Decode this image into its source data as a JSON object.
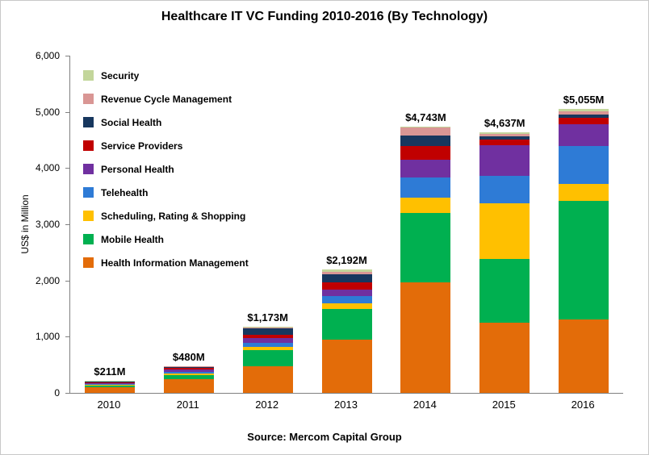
{
  "title": "Healthcare IT VC Funding 2010-2016 (By Technology)",
  "y_axis_label": "US$ in Million",
  "source": "Source: Mercom Capital Group",
  "chart_data": {
    "type": "bar",
    "stacked": true,
    "title": "Healthcare IT VC Funding 2010-2016 (By Technology)",
    "xlabel": "",
    "ylabel": "US$ in Million",
    "ylim": [
      0,
      6000
    ],
    "ytick_interval": 1000,
    "yticks": [
      "0",
      "1,000",
      "2,000",
      "3,000",
      "4,000",
      "5,000",
      "6,000"
    ],
    "grid": false,
    "legend_position": "top-left-inside",
    "categories": [
      "2010",
      "2011",
      "2012",
      "2013",
      "2014",
      "2015",
      "2016"
    ],
    "totals_labels": [
      "$211M",
      "$480M",
      "$1,173M",
      "$2,192M",
      "$4,743M",
      "$4,637M",
      "$5,055M"
    ],
    "totals_values": [
      211,
      480,
      1173,
      2192,
      4743,
      4637,
      5055
    ],
    "series": [
      {
        "name": "Health Information Management",
        "color": "#E36C09",
        "values": [
          100,
          250,
          480,
          950,
          1970,
          1250,
          1300
        ]
      },
      {
        "name": "Mobile Health",
        "color": "#00B050",
        "values": [
          30,
          60,
          280,
          550,
          1230,
          1130,
          2120
        ]
      },
      {
        "name": "Scheduling, Rating & Shopping",
        "color": "#FFC000",
        "values": [
          20,
          40,
          60,
          100,
          280,
          1000,
          300
        ]
      },
      {
        "name": "Telehealth",
        "color": "#2E7BD6",
        "values": [
          15,
          30,
          70,
          120,
          350,
          480,
          680
        ]
      },
      {
        "name": "Personal Health",
        "color": "#7030A0",
        "values": [
          15,
          40,
          90,
          120,
          320,
          550,
          380
        ]
      },
      {
        "name": "Service Providers",
        "color": "#C00000",
        "values": [
          10,
          20,
          50,
          120,
          250,
          100,
          120
        ]
      },
      {
        "name": "Social Health",
        "color": "#17375E",
        "values": [
          10,
          25,
          120,
          150,
          180,
          50,
          60
        ]
      },
      {
        "name": "Revenue Cycle Management",
        "color": "#D99694",
        "values": [
          5,
          10,
          15,
          50,
          140,
          50,
          45
        ]
      },
      {
        "name": "Security",
        "color": "#C3D69B",
        "values": [
          6,
          5,
          8,
          32,
          23,
          27,
          50
        ]
      }
    ]
  }
}
